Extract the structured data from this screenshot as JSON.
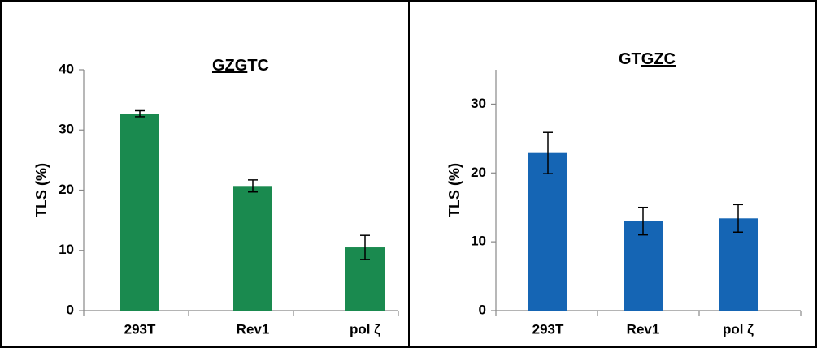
{
  "chart_data": [
    {
      "type": "bar",
      "title_parts": [
        {
          "text": "GZG",
          "underline": true
        },
        {
          "text": "TC",
          "underline": false
        }
      ],
      "y_label": "TLS (%)",
      "categories": [
        "293T",
        "Rev1",
        "pol ζ"
      ],
      "values": [
        32.7,
        20.7,
        10.5
      ],
      "errors": [
        0.5,
        1.0,
        2.0
      ],
      "color": "#1a8a4f",
      "ylim": [
        0,
        40
      ],
      "yticks": [
        0,
        10,
        20,
        30,
        40
      ],
      "grid": false
    },
    {
      "type": "bar",
      "title_parts": [
        {
          "text": "GT",
          "underline": false
        },
        {
          "text": "GZC",
          "underline": true
        }
      ],
      "y_label": "TLS (%)",
      "categories": [
        "293T",
        "Rev1",
        "pol ζ"
      ],
      "values": [
        22.9,
        13.0,
        13.4
      ],
      "errors": [
        3.0,
        2.0,
        2.0
      ],
      "color": "#1565b4",
      "ylim": [
        0,
        35
      ],
      "yticks": [
        0,
        10,
        20,
        30
      ],
      "grid": false
    }
  ]
}
